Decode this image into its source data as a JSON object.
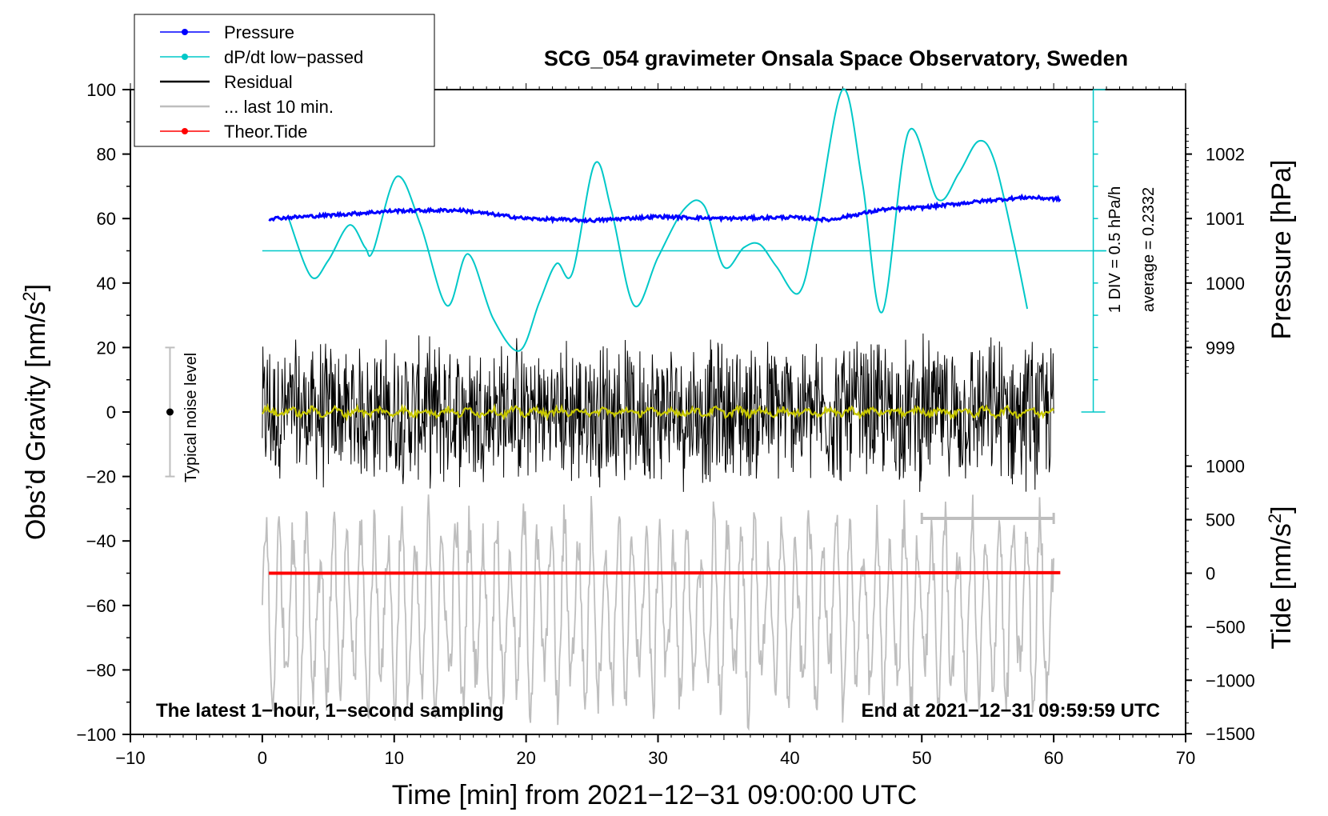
{
  "chart_data": {
    "type": "line",
    "title": "SCG_054 gravimeter Onsala Space Observatory, Sweden",
    "xlabel": "Time [min] from 2021−12−31 09:00:00 UTC",
    "ylabel_left": "Obs’d Gravity [nm/s",
    "ylabel_left_sup": "2",
    "ylabel_left_end": "]",
    "ylabel_pressure": "Pressure [hPa]",
    "ylabel_tide": "Tide [nm/s",
    "ylabel_tide_sup": "2",
    "ylabel_tide_end": "]",
    "xlim": [
      -10,
      70
    ],
    "ylim_left": [
      -100,
      100
    ],
    "x_ticks": [
      "−10",
      "0",
      "10",
      "20",
      "30",
      "40",
      "50",
      "60",
      "70"
    ],
    "x_tick_values": [
      -10,
      0,
      10,
      20,
      30,
      40,
      50,
      60,
      70
    ],
    "y_ticks_left": [
      "100",
      "80",
      "60",
      "40",
      "20",
      "0",
      "−20",
      "−40",
      "−60",
      "−80",
      "−100"
    ],
    "y_tick_values_left": [
      100,
      80,
      60,
      40,
      20,
      0,
      -20,
      -40,
      -60,
      -80,
      -100
    ],
    "pressure_ticks": [
      "1002",
      "1001",
      "1000",
      "999"
    ],
    "pressure_tick_values": [
      1002,
      1001,
      1000,
      999
    ],
    "tide_ticks": [
      "1000",
      "500",
      "0",
      "−500",
      "−1000",
      "−1500"
    ],
    "tide_tick_values": [
      1000,
      500,
      0,
      -500,
      -1000,
      -1500
    ],
    "annotation_left": "The latest 1−hour, 1−second sampling",
    "annotation_right": "End at 2021−12−31 09:59:59 UTC",
    "dpdt_scale_label": "1 DIV = 0.5 hPa/h",
    "dpdt_average_label": "average = 0.2332",
    "noise_label": "Typical noise level",
    "noise_bar": {
      "x": -7,
      "center": 0,
      "half_range": 20
    },
    "last10_bar": {
      "x_start": 50,
      "x_end": 60,
      "y": -33
    },
    "legend": [
      {
        "label": "Pressure",
        "color": "#0000ff",
        "marker": true
      },
      {
        "label": "dP/dt low−passed",
        "color": "#00c8c8",
        "marker": true
      },
      {
        "label": "Residual",
        "color": "#000000",
        "marker": false
      },
      {
        "label": "... last 10 min.",
        "color": "#bebebe",
        "marker": false
      },
      {
        "label": "Theor.Tide",
        "color": "#ff0000",
        "marker": true
      }
    ],
    "series": [
      {
        "name": "Pressure",
        "axis": "pressure",
        "color": "#0000ff",
        "x": [
          0.5,
          5,
          10,
          15,
          20,
          25,
          30,
          35,
          40,
          43,
          47,
          50,
          55,
          58,
          60.5
        ],
        "y": [
          1001.0,
          1001.05,
          1001.12,
          1001.13,
          1001.0,
          1000.97,
          1001.03,
          1001.0,
          1001.02,
          1000.98,
          1001.14,
          1001.17,
          1001.28,
          1001.33,
          1001.3
        ]
      },
      {
        "name": "dP/dt low-passed",
        "axis": "left",
        "color": "#00c8c8",
        "baseline_y": 50,
        "baseline_x": [
          0,
          64
        ],
        "x": [
          2,
          3.7,
          5,
          6.6,
          7.8,
          8.4,
          10.2,
          12,
          14,
          15.6,
          17.5,
          19.5,
          21,
          22.3,
          23.5,
          25.2,
          26.5,
          28.2,
          30,
          32,
          33.5,
          35,
          36.5,
          37.7,
          39,
          40.7,
          42,
          44,
          45.5,
          47,
          49,
          51.2,
          52.8,
          54.3,
          55.5,
          57,
          58
        ],
        "y": [
          60,
          42,
          47,
          58,
          51,
          50,
          73,
          58,
          33,
          49,
          29,
          19,
          34,
          46,
          43,
          77,
          62,
          33,
          48,
          63,
          64,
          45,
          51,
          52,
          45,
          37,
          58,
          100,
          71,
          31,
          87,
          66,
          74,
          84,
          78,
          52,
          32
        ]
      },
      {
        "name": "Residual",
        "axis": "left",
        "color": "#000000",
        "x_range": [
          0,
          60
        ],
        "amplitude": 22
      },
      {
        "name": "Residual smoothed",
        "axis": "left",
        "color": "#c8c800",
        "x_range": [
          0,
          60
        ],
        "level": 0
      },
      {
        "name": "Theor.Tide",
        "axis": "tide",
        "color": "#ff0000",
        "x": [
          0.5,
          60.5
        ],
        "y": [
          0,
          5
        ]
      },
      {
        "name": "... last 10 min.",
        "axis": "left",
        "color": "#bebebe",
        "x_range": [
          0,
          60
        ],
        "center": -62,
        "amplitude": 30
      }
    ]
  }
}
